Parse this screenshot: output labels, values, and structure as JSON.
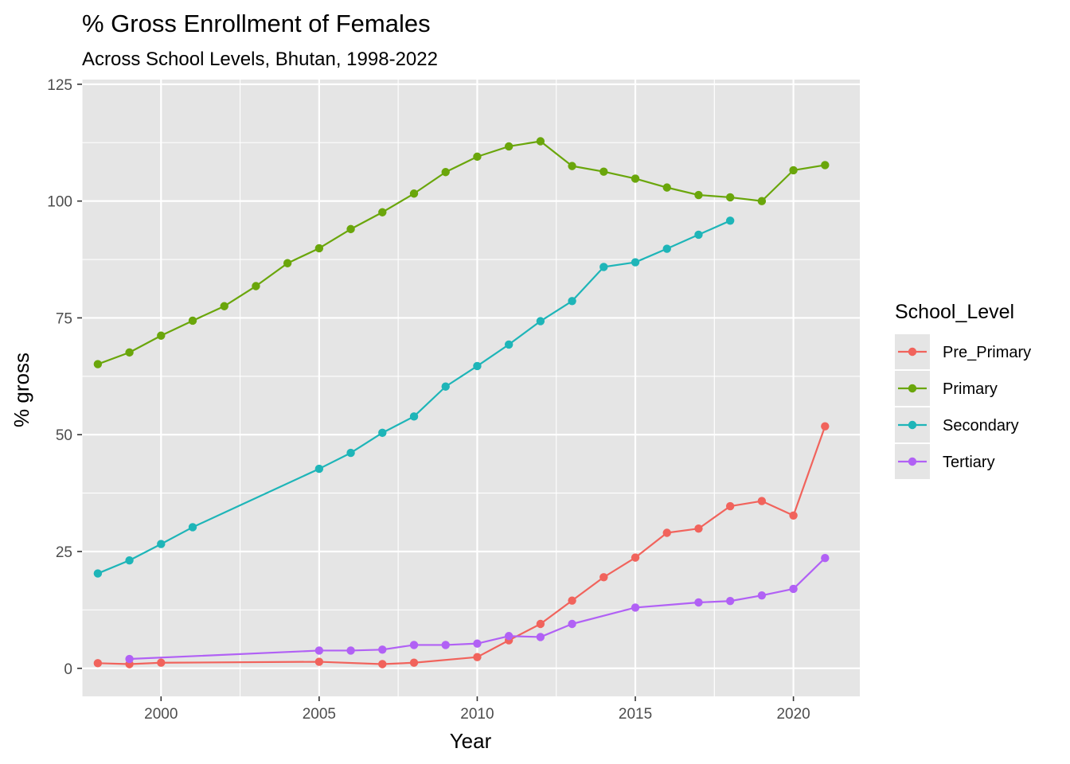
{
  "chart_data": {
    "type": "line",
    "title": "% Gross Enrollment of Females",
    "subtitle": "Across School Levels, Bhutan, 1998-2022",
    "xlabel": "Year",
    "ylabel": "% gross",
    "xlim": [
      1997.5,
      2022.1
    ],
    "ylim": [
      -6,
      126
    ],
    "x_ticks": [
      2000,
      2005,
      2010,
      2015,
      2020
    ],
    "y_ticks": [
      0,
      25,
      50,
      75,
      100,
      125
    ],
    "grid": true,
    "legend_position": "right",
    "legend_title": "School_Level",
    "colors": {
      "background": "#e5e5e5",
      "grid": "#ffffff",
      "Pre_Primary": "#f1635c",
      "Primary": "#6aa60b",
      "Secondary": "#1eb5b8",
      "Tertiary": "#b161f5"
    },
    "series": [
      {
        "name": "Pre_Primary",
        "points": [
          [
            1998,
            1.1
          ],
          [
            1999,
            0.9
          ],
          [
            2000,
            1.2
          ],
          [
            2005,
            1.4
          ],
          [
            2007,
            0.9
          ],
          [
            2008,
            1.2
          ],
          [
            2010,
            2.4
          ],
          [
            2011,
            6.0
          ],
          [
            2012,
            9.5
          ],
          [
            2013,
            14.5
          ],
          [
            2014,
            19.5
          ],
          [
            2015,
            23.7
          ],
          [
            2016,
            29.0
          ],
          [
            2017,
            29.9
          ],
          [
            2018,
            34.7
          ],
          [
            2019,
            35.8
          ],
          [
            2020,
            32.7
          ],
          [
            2021,
            51.8
          ]
        ]
      },
      {
        "name": "Primary",
        "points": [
          [
            1998,
            65.1
          ],
          [
            1999,
            67.6
          ],
          [
            2000,
            71.2
          ],
          [
            2001,
            74.4
          ],
          [
            2002,
            77.5
          ],
          [
            2003,
            81.8
          ],
          [
            2004,
            86.7
          ],
          [
            2005,
            89.9
          ],
          [
            2006,
            94.0
          ],
          [
            2007,
            97.6
          ],
          [
            2008,
            101.6
          ],
          [
            2009,
            106.2
          ],
          [
            2010,
            109.5
          ],
          [
            2011,
            111.7
          ],
          [
            2012,
            112.8
          ],
          [
            2013,
            107.5
          ],
          [
            2014,
            106.3
          ],
          [
            2015,
            104.8
          ],
          [
            2016,
            102.9
          ],
          [
            2017,
            101.3
          ],
          [
            2018,
            100.8
          ],
          [
            2019,
            100.0
          ],
          [
            2020,
            106.6
          ],
          [
            2021,
            107.7
          ]
        ]
      },
      {
        "name": "Secondary",
        "points": [
          [
            1998,
            20.3
          ],
          [
            1999,
            23.1
          ],
          [
            2000,
            26.6
          ],
          [
            2001,
            30.2
          ],
          [
            2005,
            42.7
          ],
          [
            2006,
            46.1
          ],
          [
            2007,
            50.4
          ],
          [
            2008,
            53.9
          ],
          [
            2009,
            60.3
          ],
          [
            2010,
            64.7
          ],
          [
            2011,
            69.3
          ],
          [
            2012,
            74.3
          ],
          [
            2013,
            78.6
          ],
          [
            2014,
            85.9
          ],
          [
            2015,
            86.9
          ],
          [
            2016,
            89.8
          ],
          [
            2017,
            92.8
          ],
          [
            2018,
            95.8
          ]
        ]
      },
      {
        "name": "Tertiary",
        "points": [
          [
            1999,
            2.0
          ],
          [
            2005,
            3.8
          ],
          [
            2006,
            3.8
          ],
          [
            2007,
            4.0
          ],
          [
            2008,
            5.0
          ],
          [
            2009,
            5.0
          ],
          [
            2010,
            5.3
          ],
          [
            2011,
            6.9
          ],
          [
            2012,
            6.7
          ],
          [
            2013,
            9.5
          ],
          [
            2015,
            13.0
          ],
          [
            2017,
            14.1
          ],
          [
            2018,
            14.4
          ],
          [
            2019,
            15.6
          ],
          [
            2020,
            17.0
          ],
          [
            2021,
            23.6
          ]
        ]
      }
    ]
  }
}
